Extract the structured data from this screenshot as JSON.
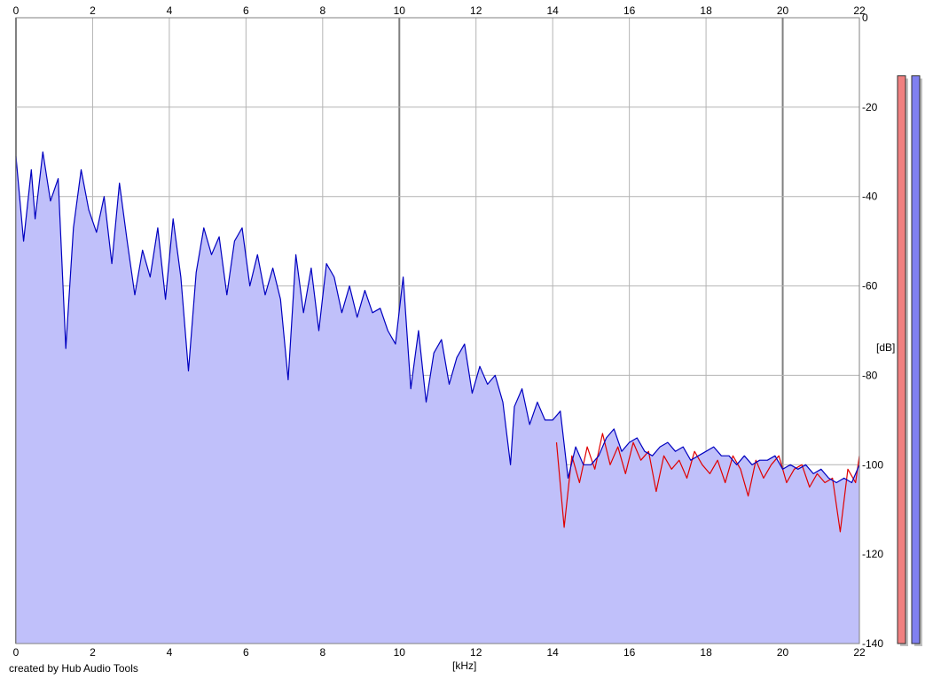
{
  "chart_data": {
    "type": "area",
    "title": "",
    "xlabel": "[kHz]",
    "ylabel": "[dB]",
    "xlim": [
      0,
      22
    ],
    "ylim": [
      -140,
      0
    ],
    "x_ticks": [
      0,
      2,
      4,
      6,
      8,
      10,
      12,
      14,
      16,
      18,
      20,
      22
    ],
    "y_ticks": [
      0,
      -20,
      -40,
      -60,
      -80,
      -100,
      -120,
      -140
    ],
    "grid": true,
    "credit": "created by Hub Audio Tools",
    "series": [
      {
        "color": "#0000c0",
        "fill": "#c0c0fa",
        "x": [
          0,
          0.2,
          0.4,
          0.5,
          0.7,
          0.9,
          1.1,
          1.2,
          1.3,
          1.5,
          1.7,
          1.9,
          2.1,
          2.3,
          2.5,
          2.7,
          2.9,
          3.1,
          3.3,
          3.5,
          3.7,
          3.9,
          4.1,
          4.3,
          4.5,
          4.7,
          4.9,
          5.1,
          5.3,
          5.5,
          5.7,
          5.9,
          6.1,
          6.3,
          6.5,
          6.7,
          6.9,
          7.1,
          7.3,
          7.5,
          7.7,
          7.9,
          8.1,
          8.3,
          8.5,
          8.7,
          8.9,
          9.1,
          9.3,
          9.5,
          9.7,
          9.9,
          10.1,
          10.3,
          10.5,
          10.7,
          10.9,
          11.1,
          11.3,
          11.5,
          11.7,
          11.9,
          12.1,
          12.3,
          12.5,
          12.7,
          12.9,
          13.0,
          13.2,
          13.4,
          13.6,
          13.8,
          14.0,
          14.2,
          14.4,
          14.6,
          14.8,
          15.0,
          15.2,
          15.4,
          15.6,
          15.8,
          16.0,
          16.2,
          16.4,
          16.6,
          16.8,
          17.0,
          17.2,
          17.4,
          17.6,
          17.8,
          18.0,
          18.2,
          18.4,
          18.6,
          18.8,
          19.0,
          19.2,
          19.4,
          19.6,
          19.8,
          20.0,
          20.2,
          20.4,
          20.6,
          20.8,
          21.0,
          21.2,
          21.4,
          21.6,
          21.8,
          22.0
        ],
        "y": [
          -31,
          -50,
          -34,
          -45,
          -30,
          -41,
          -36,
          -55,
          -74,
          -47,
          -34,
          -43,
          -48,
          -40,
          -55,
          -37,
          -50,
          -62,
          -52,
          -58,
          -47,
          -63,
          -45,
          -58,
          -79,
          -57,
          -47,
          -53,
          -49,
          -62,
          -50,
          -47,
          -60,
          -53,
          -62,
          -56,
          -63,
          -81,
          -53,
          -66,
          -56,
          -70,
          -55,
          -58,
          -66,
          -60,
          -67,
          -61,
          -66,
          -65,
          -70,
          -73,
          -58,
          -83,
          -70,
          -86,
          -75,
          -72,
          -82,
          -76,
          -73,
          -84,
          -78,
          -82,
          -80,
          -86,
          -100,
          -87,
          -83,
          -91,
          -86,
          -90,
          -90,
          -88,
          -103,
          -96,
          -100,
          -100,
          -98,
          -94,
          -92,
          -97,
          -95,
          -94,
          -97,
          -98,
          -96,
          -95,
          -97,
          -96,
          -99,
          -98,
          -97,
          -96,
          -98,
          -98,
          -100,
          -98,
          -100,
          -99,
          -99,
          -98,
          -101,
          -100,
          -101,
          -100,
          -102,
          -101,
          -103,
          -104,
          -103,
          -104,
          -100
        ]
      },
      {
        "color": "#e00000",
        "x": [
          14.1,
          14.3,
          14.5,
          14.7,
          14.9,
          15.1,
          15.3,
          15.5,
          15.7,
          15.9,
          16.1,
          16.3,
          16.5,
          16.7,
          16.9,
          17.1,
          17.3,
          17.5,
          17.7,
          17.9,
          18.1,
          18.3,
          18.5,
          18.7,
          18.9,
          19.1,
          19.3,
          19.5,
          19.7,
          19.9,
          20.1,
          20.3,
          20.5,
          20.7,
          20.9,
          21.1,
          21.3,
          21.5,
          21.7,
          21.9,
          22.0
        ],
        "y": [
          -95,
          -114,
          -98,
          -104,
          -96,
          -101,
          -93,
          -100,
          -96,
          -102,
          -95,
          -99,
          -97,
          -106,
          -98,
          -101,
          -99,
          -103,
          -97,
          -100,
          -102,
          -99,
          -104,
          -98,
          -101,
          -107,
          -99,
          -103,
          -100,
          -98,
          -104,
          -101,
          -100,
          -105,
          -102,
          -104,
          -103,
          -115,
          -101,
          -104,
          -98
        ]
      }
    ],
    "level_meters": [
      {
        "channel": "left",
        "color": "#f08080",
        "value_db": -13
      },
      {
        "channel": "right",
        "color": "#8080f0",
        "value_db": -13
      }
    ]
  }
}
